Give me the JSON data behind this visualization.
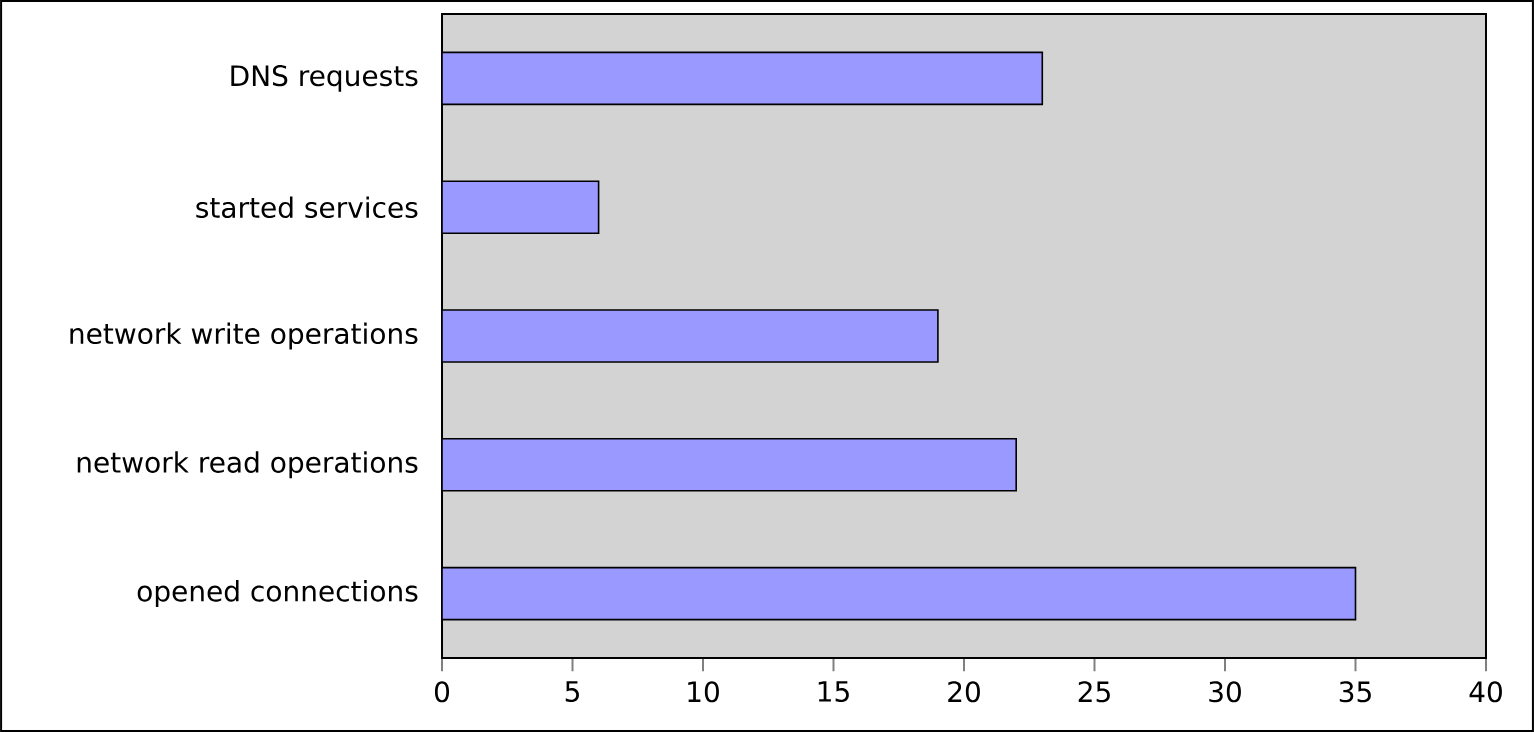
{
  "chart_data": {
    "type": "bar",
    "orientation": "horizontal",
    "categories": [
      "DNS requests",
      "started services",
      "network write operations",
      "network read operations",
      "opened connections"
    ],
    "values": [
      23,
      6,
      19,
      22,
      35
    ],
    "color": "#9999ff",
    "xlim": [
      0,
      40
    ],
    "xticks": [
      0,
      5,
      10,
      15,
      20,
      25,
      30,
      35,
      40
    ]
  }
}
